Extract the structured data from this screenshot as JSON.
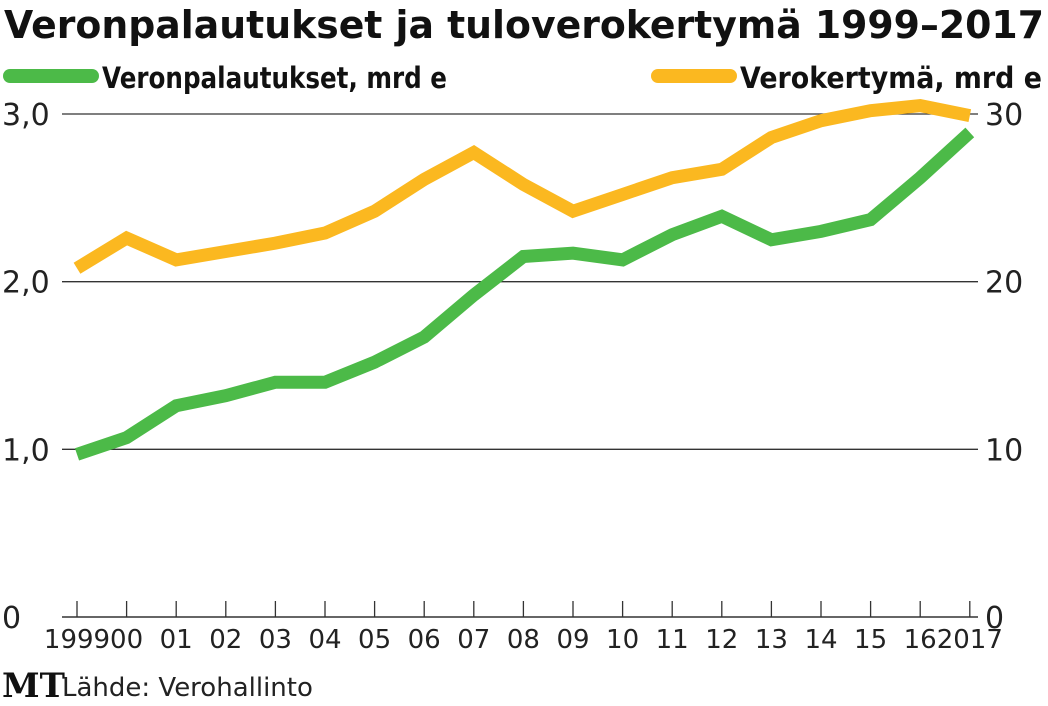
{
  "chart_data": {
    "type": "line",
    "title": "Veronpalautukset ja tuloverokertymä 1999–2017",
    "x": [
      1999,
      2000,
      2001,
      2002,
      2003,
      2004,
      2005,
      2006,
      2007,
      2008,
      2009,
      2010,
      2011,
      2012,
      2013,
      2014,
      2015,
      2016,
      2017
    ],
    "x_tick_labels": [
      "1999",
      "00",
      "01",
      "02",
      "03",
      "04",
      "05",
      "06",
      "07",
      "08",
      "09",
      "10",
      "11",
      "12",
      "13",
      "14",
      "15",
      "16",
      "2017"
    ],
    "y_left": {
      "range": [
        0,
        3
      ],
      "ticks": [
        0,
        1,
        2,
        3
      ],
      "tick_labels": [
        "0",
        "1,0",
        "2,0",
        "3,0"
      ]
    },
    "y_right": {
      "range": [
        0,
        30
      ],
      "ticks": [
        0,
        10,
        20,
        30
      ],
      "tick_labels": [
        "0",
        "10",
        "20",
        "30"
      ]
    },
    "grid": "horizontal",
    "legend": "top",
    "series": [
      {
        "name": "Veronpalautukset, mrd e",
        "axis": "left",
        "color": "#4cba48",
        "values": [
          0.97,
          1.07,
          1.26,
          1.32,
          1.4,
          1.4,
          1.52,
          1.67,
          1.92,
          2.15,
          2.17,
          2.13,
          2.28,
          2.39,
          2.25,
          2.3,
          2.37,
          2.62,
          2.89
        ]
      },
      {
        "name": "Verokertymä, mrd e",
        "axis": "right",
        "color": "#fbb820",
        "values": [
          20.8,
          22.6,
          21.3,
          21.8,
          22.3,
          22.9,
          24.2,
          26.1,
          27.7,
          25.8,
          24.2,
          25.2,
          26.2,
          26.7,
          28.6,
          29.6,
          30.2,
          30.5,
          29.9
        ]
      }
    ],
    "source": "Lähde: Verohallinto",
    "logo": "MT"
  }
}
